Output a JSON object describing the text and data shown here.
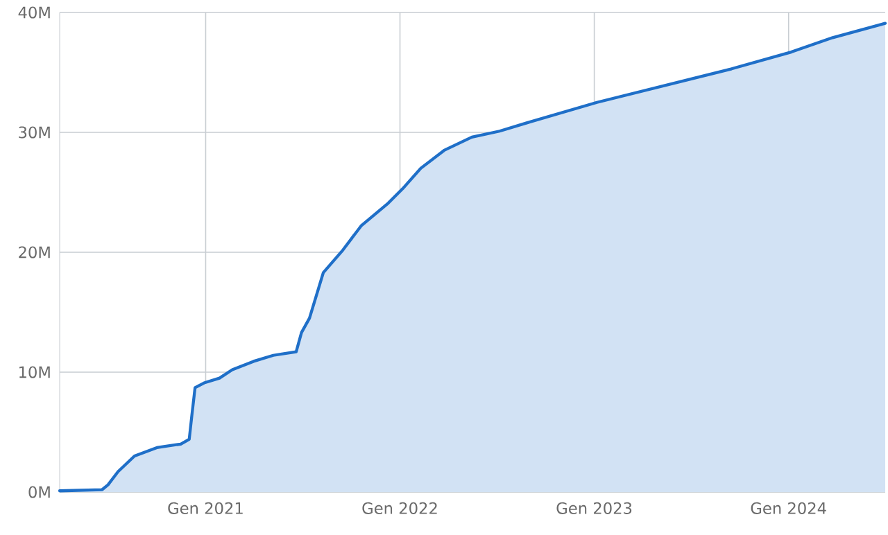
{
  "chart_data": {
    "type": "area",
    "color": "#1f6fc8",
    "x": [
      "2020-04-01",
      "2020-06-20",
      "2020-07-01",
      "2020-07-20",
      "2020-08-20",
      "2020-10-01",
      "2020-11-15",
      "2020-12-01",
      "2020-12-06",
      "2020-12-12",
      "2020-12-29",
      "2021-01-27",
      "2021-02-20",
      "2021-04-01",
      "2021-05-08",
      "2021-06-20",
      "2021-06-30",
      "2021-07-15",
      "2021-08-10",
      "2021-09-16",
      "2021-10-20",
      "2021-12-10",
      "2022-01-06",
      "2022-02-09",
      "2022-03-25",
      "2022-05-16",
      "2022-07-07",
      "2022-08-28",
      "2023-01-06",
      "2023-09-16",
      "2024-01-06",
      "2024-03-24",
      "2024-07-01"
    ],
    "values": [
      0.1,
      0.2,
      0.6,
      1.7,
      3.0,
      3.7,
      4.0,
      4.4,
      6.4,
      8.7,
      9.1,
      9.5,
      10.2,
      10.9,
      11.4,
      11.7,
      13.3,
      14.5,
      18.3,
      20.2,
      22.2,
      24.1,
      25.3,
      27.0,
      28.5,
      29.6,
      30.1,
      30.8,
      32.5,
      35.3,
      36.7,
      37.9,
      39.1
    ],
    "xlim": [
      "2020-04-01",
      "2024-07-01"
    ],
    "ylim": [
      0,
      40
    ],
    "xticks": [
      {
        "value": "2021-01-01",
        "label": "Gen 2021"
      },
      {
        "value": "2022-01-01",
        "label": "Gen 2022"
      },
      {
        "value": "2023-01-01",
        "label": "Gen 2023"
      },
      {
        "value": "2024-01-01",
        "label": "Gen 2024"
      }
    ],
    "yticks": [
      {
        "value": 0,
        "label": "0M"
      },
      {
        "value": 10,
        "label": "10M"
      },
      {
        "value": 20,
        "label": "20M"
      },
      {
        "value": 30,
        "label": "30M"
      },
      {
        "value": 40,
        "label": "40M"
      }
    ],
    "grid": true
  }
}
